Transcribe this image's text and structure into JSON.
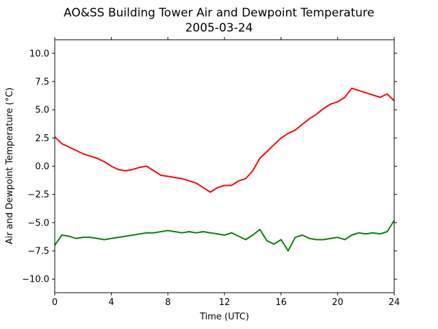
{
  "chart_data": {
    "type": "line",
    "title": "AO&SS Building Tower Air and Dewpoint Temperature",
    "subtitle": "2005-03-24",
    "xlabel": "Time (UTC)",
    "ylabel": "Air and Dewpoint Temperature (°C)",
    "xlim": [
      0,
      24
    ],
    "ylim": [
      -11.2,
      11.2
    ],
    "xticks": [
      0,
      4,
      8,
      12,
      16,
      20,
      24
    ],
    "yticks": [
      -10.0,
      -7.5,
      -5.0,
      -2.5,
      0.0,
      2.5,
      5.0,
      7.5,
      10.0
    ],
    "grid": false,
    "legend": "none",
    "series": [
      {
        "color": "#ff0000",
        "x": [
          0,
          0.5,
          1,
          1.5,
          2,
          2.5,
          3,
          3.5,
          4,
          4.5,
          5,
          5.5,
          6,
          6.5,
          7,
          7.5,
          8,
          8.5,
          9,
          9.5,
          10,
          10.5,
          11,
          11.5,
          12,
          12.5,
          13,
          13.5,
          14,
          14.5,
          15,
          15.5,
          16,
          16.5,
          17,
          17.5,
          18,
          18.5,
          19,
          19.5,
          20,
          20.5,
          21,
          21.5,
          22,
          22.5,
          23,
          23.5,
          24
        ],
        "values": [
          2.6,
          2.0,
          1.7,
          1.4,
          1.1,
          0.9,
          0.7,
          0.4,
          0.0,
          -0.3,
          -0.4,
          -0.3,
          -0.1,
          0.0,
          -0.4,
          -0.8,
          -0.9,
          -1.0,
          -1.1,
          -1.3,
          -1.5,
          -1.9,
          -2.3,
          -1.9,
          -1.7,
          -1.7,
          -1.3,
          -1.1,
          -0.4,
          0.7,
          1.3,
          1.9,
          2.5,
          2.9,
          3.2,
          3.7,
          4.2,
          4.6,
          5.1,
          5.5,
          5.7,
          6.1,
          6.9,
          6.7,
          6.5,
          6.3,
          6.1,
          6.4,
          5.8
        ]
      },
      {
        "color": "#008000",
        "x": [
          0,
          0.5,
          1,
          1.5,
          2,
          2.5,
          3,
          3.5,
          4,
          4.5,
          5,
          5.5,
          6,
          6.5,
          7,
          7.5,
          8,
          8.5,
          9,
          9.5,
          10,
          10.5,
          11,
          11.5,
          12,
          12.5,
          13,
          13.5,
          14,
          14.5,
          15,
          15.5,
          16,
          16.5,
          17,
          17.5,
          18,
          18.5,
          19,
          19.5,
          20,
          20.5,
          21,
          21.5,
          22,
          22.5,
          23,
          23.5,
          24
        ],
        "values": [
          -7.0,
          -6.1,
          -6.2,
          -6.4,
          -6.3,
          -6.3,
          -6.4,
          -6.5,
          -6.4,
          -6.3,
          -6.2,
          -6.1,
          -6.0,
          -5.9,
          -5.9,
          -5.8,
          -5.7,
          -5.8,
          -5.9,
          -5.8,
          -5.9,
          -5.8,
          -5.9,
          -6.0,
          -6.1,
          -5.9,
          -6.2,
          -6.5,
          -6.1,
          -5.6,
          -6.6,
          -6.9,
          -6.5,
          -7.5,
          -6.3,
          -6.1,
          -6.4,
          -6.5,
          -6.5,
          -6.4,
          -6.3,
          -6.5,
          -6.1,
          -5.9,
          -6.0,
          -5.9,
          -6.0,
          -5.8,
          -4.8
        ]
      }
    ]
  }
}
